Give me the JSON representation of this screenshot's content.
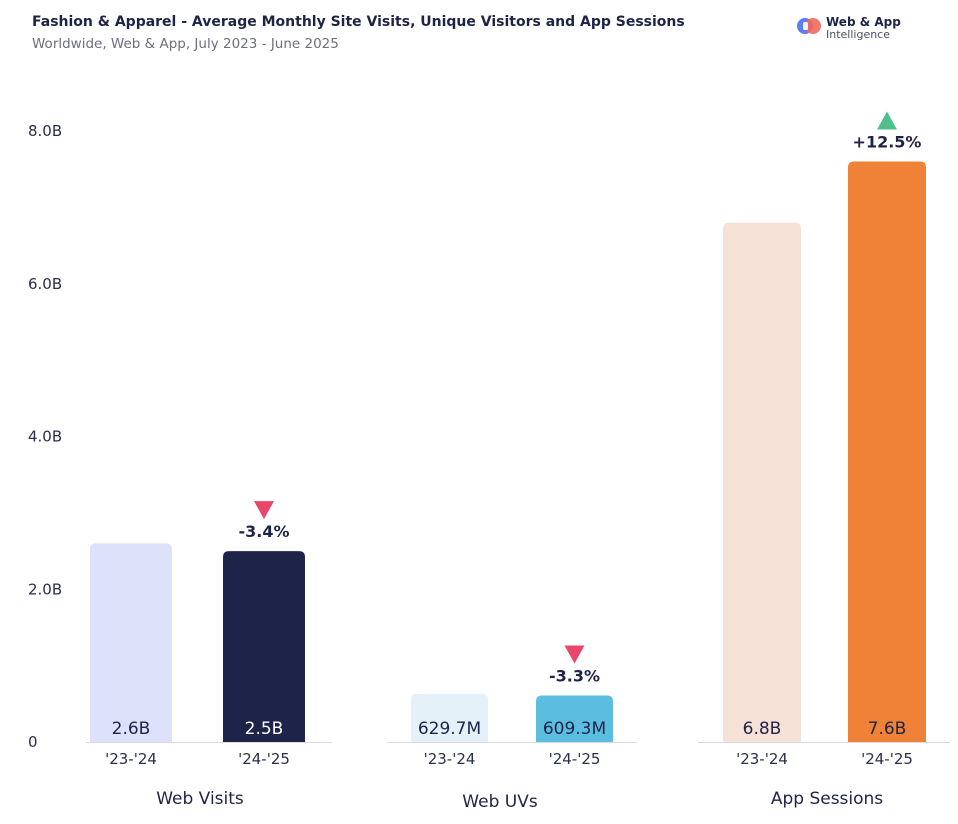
{
  "header": {
    "title": "Fashion & Apparel - Average Monthly Site Visits, Unique Visitors and App Sessions",
    "subtitle": "Worldwide, Web & App, July 2023 - June 2025"
  },
  "logo": {
    "line1": "Web & App",
    "line2": "Intelligence"
  },
  "chart_data": {
    "type": "bar",
    "title": "Fashion & Apparel - Average Monthly Site Visits, Unique Visitors and App Sessions",
    "subtitle": "Worldwide, Web & App, July 2023 - June 2025",
    "ylim": [
      0,
      8.0
    ],
    "yunit": "B",
    "yticks": [
      0,
      2.0,
      4.0,
      6.0,
      8.0
    ],
    "ytick_labels": [
      "0",
      "2.0B",
      "4.0B",
      "6.0B",
      "8.0B"
    ],
    "categories": [
      "'23-'24",
      "'24-'25"
    ],
    "groups": [
      {
        "name": "Web Visits",
        "values": [
          2.6,
          2.5
        ],
        "labels": [
          "2.6B",
          "2.5B"
        ],
        "colors": [
          "#dde1fa",
          "#1e2449"
        ],
        "label_colors": [
          "#1e2447",
          "#ffffff"
        ],
        "change": "-3.4%",
        "direction": "down"
      },
      {
        "name": "Web UVs",
        "values": [
          0.6297,
          0.6093
        ],
        "labels": [
          "629.7M",
          "609.3M"
        ],
        "colors": [
          "#e4f1f9",
          "#5bbde0"
        ],
        "label_colors": [
          "#1e2447",
          "#1e2447"
        ],
        "change": "-3.3%",
        "direction": "down"
      },
      {
        "name": "App Sessions",
        "values": [
          6.8,
          7.6
        ],
        "labels": [
          "6.8B",
          "7.6B"
        ],
        "colors": [
          "#f5e1d6",
          "#ef8236"
        ],
        "label_colors": [
          "#1e2447",
          "#1e2447"
        ],
        "change": "+12.5%",
        "direction": "up"
      }
    ],
    "arrow_colors": {
      "down": "#e8466b",
      "up": "#4fc08d"
    }
  }
}
